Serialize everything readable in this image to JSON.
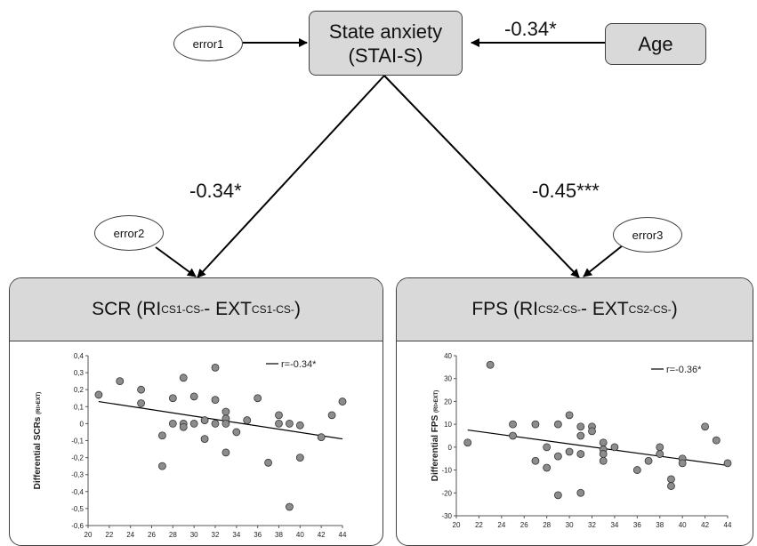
{
  "nodes": {
    "state": {
      "line1": "State anxiety",
      "line2": "(STAI-S)"
    },
    "age": "Age",
    "error1": "error1",
    "error2": "error2",
    "error3": "error3"
  },
  "paths": {
    "age_to_state": "-0.34*",
    "state_to_scr": "-0.34*",
    "state_to_fps": "-0.45***"
  },
  "panels": {
    "scr": {
      "main": "SCR (RI",
      "sub1": "CS1-CS-",
      "mid": " - EXT",
      "sub2": "CS1-CS-",
      "end": ")"
    },
    "fps": {
      "main": "FPS (RI",
      "sub1": "CS2-CS-",
      "mid": " - EXT",
      "sub2": "CS2-CS-",
      "end": ")"
    }
  },
  "chart_data": [
    {
      "type": "scatter",
      "ylabel": "Differential SCRs",
      "ylabel_sub": "(RI>EXT)",
      "legend": "r=-0.34*",
      "xlim": [
        20,
        44
      ],
      "ylim": [
        -0.6,
        0.4
      ],
      "xticks": [
        "20",
        "22",
        "24",
        "26",
        "28",
        "30",
        "32",
        "34",
        "36",
        "38",
        "40",
        "42",
        "44"
      ],
      "yticks": [
        "0,4",
        "0,3",
        "0,2",
        "0,1",
        "0",
        "-0,1",
        "-0,2",
        "-0,3",
        "-0,4",
        "-0,5",
        "-0,6"
      ],
      "fit": {
        "x": [
          21,
          44
        ],
        "y": [
          0.13,
          -0.09
        ]
      },
      "points": [
        {
          "x": 21,
          "y": 0.17
        },
        {
          "x": 23,
          "y": 0.25
        },
        {
          "x": 25,
          "y": 0.2
        },
        {
          "x": 25,
          "y": 0.12
        },
        {
          "x": 27,
          "y": -0.07
        },
        {
          "x": 27,
          "y": -0.25
        },
        {
          "x": 28,
          "y": 0.15
        },
        {
          "x": 28,
          "y": 0.0
        },
        {
          "x": 29,
          "y": 0.27
        },
        {
          "x": 29,
          "y": 0.0
        },
        {
          "x": 29,
          "y": -0.02
        },
        {
          "x": 30,
          "y": 0.16
        },
        {
          "x": 30,
          "y": 0.0
        },
        {
          "x": 31,
          "y": 0.02
        },
        {
          "x": 31,
          "y": -0.09
        },
        {
          "x": 32,
          "y": 0.33
        },
        {
          "x": 32,
          "y": 0.14
        },
        {
          "x": 32,
          "y": 0.0
        },
        {
          "x": 33,
          "y": 0.07
        },
        {
          "x": 33,
          "y": 0.03
        },
        {
          "x": 33,
          "y": 0.0
        },
        {
          "x": 33,
          "y": -0.17
        },
        {
          "x": 34,
          "y": -0.05
        },
        {
          "x": 35,
          "y": 0.02
        },
        {
          "x": 36,
          "y": 0.15
        },
        {
          "x": 37,
          "y": -0.23
        },
        {
          "x": 38,
          "y": 0.05
        },
        {
          "x": 38,
          "y": 0.0
        },
        {
          "x": 39,
          "y": 0.0
        },
        {
          "x": 39,
          "y": -0.49
        },
        {
          "x": 40,
          "y": -0.01
        },
        {
          "x": 40,
          "y": -0.2
        },
        {
          "x": 42,
          "y": -0.08
        },
        {
          "x": 43,
          "y": 0.05
        },
        {
          "x": 44,
          "y": 0.13
        }
      ]
    },
    {
      "type": "scatter",
      "ylabel": "Differential FPS",
      "ylabel_sub": "(RI>EXT)",
      "legend": "r=-0.36*",
      "xlim": [
        20,
        44
      ],
      "ylim": [
        -30,
        40
      ],
      "xticks": [
        "20",
        "22",
        "24",
        "26",
        "28",
        "30",
        "32",
        "34",
        "36",
        "38",
        "40",
        "42",
        "44"
      ],
      "yticks": [
        "40",
        "30",
        "20",
        "10",
        "0",
        "-10",
        "-20",
        "-30"
      ],
      "fit": {
        "x": [
          21,
          44
        ],
        "y": [
          7.5,
          -8
        ]
      },
      "points": [
        {
          "x": 21,
          "y": 2
        },
        {
          "x": 23,
          "y": 36
        },
        {
          "x": 25,
          "y": 10
        },
        {
          "x": 25,
          "y": 5
        },
        {
          "x": 27,
          "y": 10
        },
        {
          "x": 27,
          "y": -6
        },
        {
          "x": 28,
          "y": 0
        },
        {
          "x": 28,
          "y": -9
        },
        {
          "x": 29,
          "y": 10
        },
        {
          "x": 29,
          "y": -4
        },
        {
          "x": 29,
          "y": -21
        },
        {
          "x": 30,
          "y": 14
        },
        {
          "x": 30,
          "y": -2
        },
        {
          "x": 31,
          "y": 9
        },
        {
          "x": 31,
          "y": 5
        },
        {
          "x": 31,
          "y": -3
        },
        {
          "x": 31,
          "y": -20
        },
        {
          "x": 32,
          "y": 9
        },
        {
          "x": 32,
          "y": 7
        },
        {
          "x": 33,
          "y": 2
        },
        {
          "x": 33,
          "y": -1
        },
        {
          "x": 33,
          "y": -3
        },
        {
          "x": 33,
          "y": -6
        },
        {
          "x": 34,
          "y": 0
        },
        {
          "x": 36,
          "y": -10
        },
        {
          "x": 37,
          "y": -6
        },
        {
          "x": 38,
          "y": 0
        },
        {
          "x": 38,
          "y": -3
        },
        {
          "x": 39,
          "y": -14
        },
        {
          "x": 39,
          "y": -17
        },
        {
          "x": 40,
          "y": -5
        },
        {
          "x": 40,
          "y": -7
        },
        {
          "x": 42,
          "y": 9
        },
        {
          "x": 43,
          "y": 3
        },
        {
          "x": 44,
          "y": -7
        }
      ]
    }
  ]
}
